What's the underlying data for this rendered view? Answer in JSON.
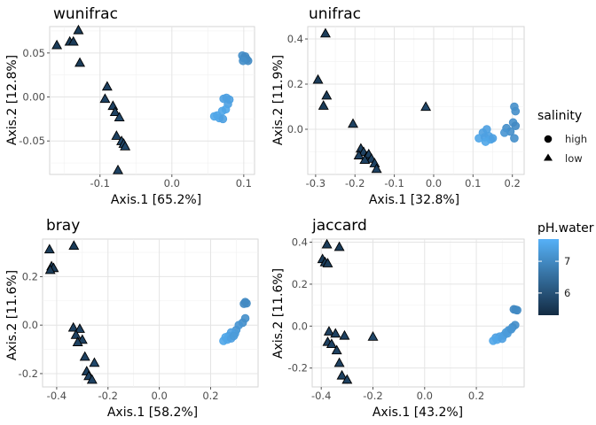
{
  "legend": {
    "shape_title": "salinity",
    "shape_items": [
      "high",
      "low"
    ],
    "color_title": "pH.water",
    "color_ticks": [
      6,
      7
    ],
    "color_range": [
      5.3,
      7.7
    ],
    "color_low": "#132B43",
    "color_high": "#56B1F7"
  },
  "chart_data": [
    {
      "type": "scatter",
      "title": "wunifrac",
      "xlabel": "Axis.1   [65.2%]",
      "ylabel": "Axis.2   [12.8%]",
      "xlim": [
        -0.17,
        0.115
      ],
      "ylim": [
        -0.088,
        0.08
      ],
      "xticks": [
        -0.1,
        0.0,
        0.1
      ],
      "yticks": [
        -0.05,
        0.0,
        0.05
      ],
      "grid": true,
      "points": [
        {
          "x": -0.16,
          "y": 0.059,
          "salinity": "low",
          "ph": 5.6
        },
        {
          "x": -0.142,
          "y": 0.063,
          "salinity": "low",
          "ph": 5.6
        },
        {
          "x": -0.137,
          "y": 0.063,
          "salinity": "low",
          "ph": 5.6
        },
        {
          "x": -0.13,
          "y": 0.076,
          "salinity": "low",
          "ph": 5.6
        },
        {
          "x": -0.128,
          "y": 0.039,
          "salinity": "low",
          "ph": 5.6
        },
        {
          "x": -0.09,
          "y": 0.012,
          "salinity": "low",
          "ph": 5.7
        },
        {
          "x": -0.093,
          "y": -0.002,
          "salinity": "low",
          "ph": 5.7
        },
        {
          "x": -0.082,
          "y": -0.01,
          "salinity": "low",
          "ph": 5.7
        },
        {
          "x": -0.079,
          "y": -0.017,
          "salinity": "low",
          "ph": 5.7
        },
        {
          "x": -0.073,
          "y": -0.023,
          "salinity": "low",
          "ph": 5.8
        },
        {
          "x": -0.077,
          "y": -0.044,
          "salinity": "low",
          "ph": 5.7
        },
        {
          "x": -0.07,
          "y": -0.05,
          "salinity": "low",
          "ph": 5.8
        },
        {
          "x": -0.067,
          "y": -0.053,
          "salinity": "low",
          "ph": 5.8
        },
        {
          "x": -0.065,
          "y": -0.056,
          "salinity": "low",
          "ph": 5.8
        },
        {
          "x": -0.075,
          "y": -0.083,
          "salinity": "low",
          "ph": 5.7
        },
        {
          "x": 0.098,
          "y": 0.047,
          "salinity": "high",
          "ph": 7.1
        },
        {
          "x": 0.1,
          "y": 0.044,
          "salinity": "high",
          "ph": 7.1
        },
        {
          "x": 0.102,
          "y": 0.046,
          "salinity": "high",
          "ph": 7.0
        },
        {
          "x": 0.104,
          "y": 0.043,
          "salinity": "high",
          "ph": 7.0
        },
        {
          "x": 0.106,
          "y": 0.041,
          "salinity": "high",
          "ph": 7.0
        },
        {
          "x": 0.099,
          "y": 0.041,
          "salinity": "high",
          "ph": 7.1
        },
        {
          "x": 0.072,
          "y": -0.002,
          "salinity": "high",
          "ph": 7.4
        },
        {
          "x": 0.076,
          "y": -0.001,
          "salinity": "high",
          "ph": 7.4
        },
        {
          "x": 0.08,
          "y": -0.003,
          "salinity": "high",
          "ph": 7.4
        },
        {
          "x": 0.078,
          "y": -0.008,
          "salinity": "high",
          "ph": 7.4
        },
        {
          "x": 0.075,
          "y": -0.014,
          "salinity": "high",
          "ph": 7.5
        },
        {
          "x": 0.07,
          "y": -0.016,
          "salinity": "high",
          "ph": 7.5
        },
        {
          "x": 0.063,
          "y": -0.021,
          "salinity": "high",
          "ph": 7.5
        },
        {
          "x": 0.059,
          "y": -0.022,
          "salinity": "high",
          "ph": 7.5
        },
        {
          "x": 0.066,
          "y": -0.024,
          "salinity": "high",
          "ph": 7.5
        },
        {
          "x": 0.071,
          "y": -0.025,
          "salinity": "high",
          "ph": 7.4
        }
      ]
    },
    {
      "type": "scatter",
      "title": "unifrac",
      "xlabel": "Axis.1   [32.8%]",
      "ylabel": "Axis.2   [11.9%]",
      "xlim": [
        -0.32,
        0.23
      ],
      "ylim": [
        -0.2,
        0.455
      ],
      "xticks": [
        -0.3,
        -0.2,
        -0.1,
        0.0,
        0.1,
        0.2
      ],
      "yticks": [
        0.0,
        0.2,
        0.4
      ],
      "grid": true,
      "points": [
        {
          "x": -0.275,
          "y": 0.425,
          "salinity": "low",
          "ph": 5.6
        },
        {
          "x": -0.294,
          "y": 0.22,
          "salinity": "low",
          "ph": 5.6
        },
        {
          "x": -0.272,
          "y": 0.15,
          "salinity": "low",
          "ph": 5.6
        },
        {
          "x": -0.28,
          "y": 0.105,
          "salinity": "low",
          "ph": 5.6
        },
        {
          "x": -0.02,
          "y": 0.1,
          "salinity": "low",
          "ph": 5.8
        },
        {
          "x": -0.205,
          "y": 0.025,
          "salinity": "low",
          "ph": 5.7
        },
        {
          "x": -0.185,
          "y": -0.085,
          "salinity": "low",
          "ph": 5.7
        },
        {
          "x": -0.178,
          "y": -0.1,
          "salinity": "low",
          "ph": 5.7
        },
        {
          "x": -0.19,
          "y": -0.115,
          "salinity": "low",
          "ph": 5.7
        },
        {
          "x": -0.17,
          "y": -0.12,
          "salinity": "low",
          "ph": 5.7
        },
        {
          "x": -0.165,
          "y": -0.11,
          "salinity": "low",
          "ph": 5.7
        },
        {
          "x": -0.158,
          "y": -0.13,
          "salinity": "low",
          "ph": 5.7
        },
        {
          "x": -0.175,
          "y": -0.135,
          "salinity": "low",
          "ph": 5.7
        },
        {
          "x": -0.15,
          "y": -0.15,
          "salinity": "low",
          "ph": 5.7
        },
        {
          "x": -0.145,
          "y": -0.175,
          "salinity": "low",
          "ph": 5.7
        },
        {
          "x": 0.205,
          "y": 0.1,
          "salinity": "high",
          "ph": 7.1
        },
        {
          "x": 0.208,
          "y": 0.08,
          "salinity": "high",
          "ph": 7.1
        },
        {
          "x": 0.202,
          "y": 0.03,
          "salinity": "high",
          "ph": 7.1
        },
        {
          "x": 0.208,
          "y": 0.015,
          "salinity": "high",
          "ph": 7.0
        },
        {
          "x": 0.195,
          "y": -0.01,
          "salinity": "high",
          "ph": 7.1
        },
        {
          "x": 0.185,
          "y": 0.005,
          "salinity": "high",
          "ph": 7.1
        },
        {
          "x": 0.18,
          "y": -0.015,
          "salinity": "high",
          "ph": 7.2
        },
        {
          "x": 0.205,
          "y": -0.04,
          "salinity": "high",
          "ph": 7.1
        },
        {
          "x": 0.135,
          "y": 0.0,
          "salinity": "high",
          "ph": 7.4
        },
        {
          "x": 0.125,
          "y": -0.015,
          "salinity": "high",
          "ph": 7.4
        },
        {
          "x": 0.115,
          "y": -0.04,
          "salinity": "high",
          "ph": 7.5
        },
        {
          "x": 0.13,
          "y": -0.035,
          "salinity": "high",
          "ph": 7.4
        },
        {
          "x": 0.14,
          "y": -0.03,
          "salinity": "high",
          "ph": 7.4
        },
        {
          "x": 0.145,
          "y": -0.045,
          "salinity": "high",
          "ph": 7.5
        },
        {
          "x": 0.15,
          "y": -0.04,
          "salinity": "high",
          "ph": 7.4
        },
        {
          "x": 0.132,
          "y": -0.055,
          "salinity": "high",
          "ph": 7.5
        }
      ]
    },
    {
      "type": "scatter",
      "title": "bray",
      "xlabel": "Axis.1   [58.2%]",
      "ylabel": "Axis.2   [11.6%]",
      "xlim": [
        -0.455,
        0.385
      ],
      "ylim": [
        -0.255,
        0.355
      ],
      "xticks": [
        -0.4,
        -0.2,
        0.0,
        0.2
      ],
      "yticks": [
        -0.2,
        0.0,
        0.2
      ],
      "grid": true,
      "points": [
        {
          "x": -0.428,
          "y": 0.313,
          "salinity": "low",
          "ph": 5.6
        },
        {
          "x": -0.333,
          "y": 0.328,
          "salinity": "low",
          "ph": 5.6
        },
        {
          "x": -0.42,
          "y": 0.243,
          "salinity": "low",
          "ph": 5.6
        },
        {
          "x": -0.412,
          "y": 0.236,
          "salinity": "low",
          "ph": 5.6
        },
        {
          "x": -0.425,
          "y": 0.228,
          "salinity": "low",
          "ph": 5.6
        },
        {
          "x": -0.335,
          "y": -0.01,
          "salinity": "low",
          "ph": 5.7
        },
        {
          "x": -0.31,
          "y": -0.015,
          "salinity": "low",
          "ph": 5.7
        },
        {
          "x": -0.325,
          "y": -0.04,
          "salinity": "low",
          "ph": 5.7
        },
        {
          "x": -0.3,
          "y": -0.06,
          "salinity": "low",
          "ph": 5.7
        },
        {
          "x": -0.318,
          "y": -0.07,
          "salinity": "low",
          "ph": 5.7
        },
        {
          "x": -0.29,
          "y": -0.13,
          "salinity": "low",
          "ph": 5.7
        },
        {
          "x": -0.253,
          "y": -0.155,
          "salinity": "low",
          "ph": 5.8
        },
        {
          "x": -0.283,
          "y": -0.19,
          "salinity": "low",
          "ph": 5.7
        },
        {
          "x": -0.275,
          "y": -0.21,
          "salinity": "low",
          "ph": 5.7
        },
        {
          "x": -0.262,
          "y": -0.225,
          "salinity": "low",
          "ph": 5.7
        },
        {
          "x": 0.335,
          "y": 0.095,
          "salinity": "high",
          "ph": 7.0
        },
        {
          "x": 0.34,
          "y": 0.09,
          "salinity": "high",
          "ph": 7.0
        },
        {
          "x": 0.33,
          "y": 0.088,
          "salinity": "high",
          "ph": 7.0
        },
        {
          "x": 0.335,
          "y": 0.028,
          "salinity": "high",
          "ph": 7.1
        },
        {
          "x": 0.325,
          "y": 0.01,
          "salinity": "high",
          "ph": 7.1
        },
        {
          "x": 0.31,
          "y": 0.0,
          "salinity": "high",
          "ph": 7.2
        },
        {
          "x": 0.3,
          "y": -0.02,
          "salinity": "high",
          "ph": 7.2
        },
        {
          "x": 0.295,
          "y": -0.035,
          "salinity": "high",
          "ph": 7.3
        },
        {
          "x": 0.28,
          "y": -0.03,
          "salinity": "high",
          "ph": 7.4
        },
        {
          "x": 0.27,
          "y": -0.045,
          "salinity": "high",
          "ph": 7.4
        },
        {
          "x": 0.258,
          "y": -0.05,
          "salinity": "high",
          "ph": 7.5
        },
        {
          "x": 0.265,
          "y": -0.06,
          "salinity": "high",
          "ph": 7.5
        },
        {
          "x": 0.25,
          "y": -0.065,
          "salinity": "high",
          "ph": 7.5
        },
        {
          "x": 0.28,
          "y": -0.055,
          "salinity": "high",
          "ph": 7.4
        },
        {
          "x": 0.29,
          "y": -0.045,
          "salinity": "high",
          "ph": 7.3
        }
      ]
    },
    {
      "type": "scatter",
      "title": "jaccard",
      "xlabel": "Axis.1   [43.2%]",
      "ylabel": "Axis.2   [11.6%]",
      "xlim": [
        -0.435,
        0.385
      ],
      "ylim": [
        -0.29,
        0.415
      ],
      "xticks": [
        -0.4,
        -0.2,
        0.0,
        0.2
      ],
      "yticks": [
        -0.2,
        0.0,
        0.2,
        0.4
      ],
      "grid": true,
      "points": [
        {
          "x": -0.378,
          "y": 0.39,
          "salinity": "low",
          "ph": 5.6
        },
        {
          "x": -0.33,
          "y": 0.378,
          "salinity": "low",
          "ph": 5.6
        },
        {
          "x": -0.395,
          "y": 0.32,
          "salinity": "low",
          "ph": 5.6
        },
        {
          "x": -0.385,
          "y": 0.305,
          "salinity": "low",
          "ph": 5.6
        },
        {
          "x": -0.375,
          "y": 0.3,
          "salinity": "low",
          "ph": 5.6
        },
        {
          "x": -0.37,
          "y": -0.025,
          "salinity": "low",
          "ph": 5.7
        },
        {
          "x": -0.345,
          "y": -0.035,
          "salinity": "low",
          "ph": 5.7
        },
        {
          "x": -0.31,
          "y": -0.045,
          "salinity": "low",
          "ph": 5.7
        },
        {
          "x": -0.2,
          "y": -0.05,
          "salinity": "low",
          "ph": 5.8
        },
        {
          "x": -0.375,
          "y": -0.075,
          "salinity": "low",
          "ph": 5.7
        },
        {
          "x": -0.36,
          "y": -0.085,
          "salinity": "low",
          "ph": 5.7
        },
        {
          "x": -0.34,
          "y": -0.115,
          "salinity": "low",
          "ph": 5.7
        },
        {
          "x": -0.33,
          "y": -0.175,
          "salinity": "low",
          "ph": 5.7
        },
        {
          "x": -0.32,
          "y": -0.235,
          "salinity": "low",
          "ph": 5.7
        },
        {
          "x": -0.3,
          "y": -0.255,
          "salinity": "low",
          "ph": 5.7
        },
        {
          "x": 0.345,
          "y": 0.08,
          "salinity": "high",
          "ph": 7.0
        },
        {
          "x": 0.352,
          "y": 0.078,
          "salinity": "high",
          "ph": 7.0
        },
        {
          "x": 0.358,
          "y": 0.076,
          "salinity": "high",
          "ph": 7.0
        },
        {
          "x": 0.35,
          "y": 0.005,
          "salinity": "high",
          "ph": 7.1
        },
        {
          "x": 0.34,
          "y": -0.005,
          "salinity": "high",
          "ph": 7.1
        },
        {
          "x": 0.325,
          "y": -0.02,
          "salinity": "high",
          "ph": 7.2
        },
        {
          "x": 0.315,
          "y": -0.03,
          "salinity": "high",
          "ph": 7.3
        },
        {
          "x": 0.305,
          "y": -0.045,
          "salinity": "high",
          "ph": 7.3
        },
        {
          "x": 0.29,
          "y": -0.05,
          "salinity": "high",
          "ph": 7.4
        },
        {
          "x": 0.275,
          "y": -0.055,
          "salinity": "high",
          "ph": 7.4
        },
        {
          "x": 0.265,
          "y": -0.07,
          "salinity": "high",
          "ph": 7.5
        },
        {
          "x": 0.28,
          "y": -0.065,
          "salinity": "high",
          "ph": 7.5
        },
        {
          "x": 0.3,
          "y": -0.06,
          "salinity": "high",
          "ph": 7.4
        },
        {
          "x": 0.32,
          "y": -0.035,
          "salinity": "high",
          "ph": 7.3
        },
        {
          "x": 0.335,
          "y": -0.015,
          "salinity": "high",
          "ph": 7.2
        }
      ]
    }
  ]
}
